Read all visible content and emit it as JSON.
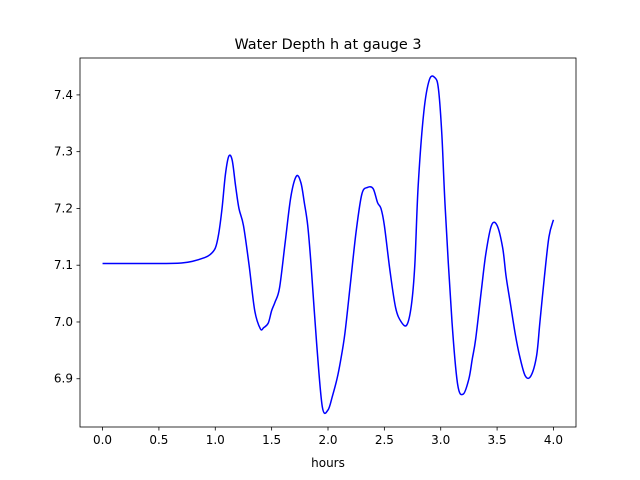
{
  "chart_data": {
    "type": "line",
    "title": "Water Depth h at gauge 3",
    "xlabel": "hours",
    "ylabel": "",
    "xlim": [
      -0.2,
      4.2
    ],
    "ylim": [
      6.815,
      7.465
    ],
    "grid": false,
    "legend": "none",
    "x_ticks": [
      0.0,
      0.5,
      1.0,
      1.5,
      2.0,
      2.5,
      3.0,
      3.5,
      4.0
    ],
    "x_tick_labels": [
      "0.0",
      "0.5",
      "1.0",
      "1.5",
      "2.0",
      "2.5",
      "3.0",
      "3.5",
      "4.0"
    ],
    "y_ticks": [
      6.9,
      7.0,
      7.1,
      7.2,
      7.3,
      7.4
    ],
    "y_tick_labels": [
      "6.9",
      "7.0",
      "7.1",
      "7.2",
      "7.3",
      "7.4"
    ],
    "series": [
      {
        "color": "#0000ff",
        "x": [
          0.0,
          0.5,
          0.7,
          0.8,
          0.9,
          0.95,
          1.0,
          1.03,
          1.06,
          1.09,
          1.12,
          1.15,
          1.18,
          1.21,
          1.25,
          1.3,
          1.35,
          1.4,
          1.43,
          1.47,
          1.5,
          1.53,
          1.57,
          1.62,
          1.67,
          1.72,
          1.76,
          1.79,
          1.82,
          1.85,
          1.9,
          1.95,
          2.0,
          2.04,
          2.08,
          2.11,
          2.15,
          2.2,
          2.25,
          2.3,
          2.35,
          2.4,
          2.44,
          2.47,
          2.5,
          2.55,
          2.6,
          2.65,
          2.7,
          2.74,
          2.77,
          2.8,
          2.85,
          2.9,
          2.95,
          2.98,
          3.01,
          3.04,
          3.1,
          3.15,
          3.2,
          3.25,
          3.28,
          3.31,
          3.36,
          3.4,
          3.45,
          3.5,
          3.55,
          3.58,
          3.62,
          3.66,
          3.7,
          3.75,
          3.8,
          3.85,
          3.88,
          3.92,
          3.96,
          4.0
        ],
        "y": [
          7.103,
          7.103,
          7.104,
          7.107,
          7.113,
          7.118,
          7.13,
          7.155,
          7.2,
          7.26,
          7.292,
          7.285,
          7.24,
          7.2,
          7.17,
          7.1,
          7.02,
          6.988,
          6.99,
          6.998,
          7.02,
          7.035,
          7.06,
          7.14,
          7.22,
          7.257,
          7.245,
          7.21,
          7.17,
          7.1,
          6.96,
          6.85,
          6.845,
          6.87,
          6.9,
          6.93,
          6.98,
          7.07,
          7.16,
          7.225,
          7.237,
          7.235,
          7.21,
          7.2,
          7.17,
          7.09,
          7.025,
          7.0,
          6.995,
          7.03,
          7.1,
          7.24,
          7.37,
          7.427,
          7.43,
          7.41,
          7.33,
          7.2,
          7.0,
          6.89,
          6.873,
          6.9,
          6.935,
          6.97,
          7.055,
          7.12,
          7.17,
          7.17,
          7.13,
          7.08,
          7.03,
          6.98,
          6.94,
          6.905,
          6.905,
          6.94,
          7.0,
          7.08,
          7.15,
          7.18
        ]
      }
    ]
  }
}
